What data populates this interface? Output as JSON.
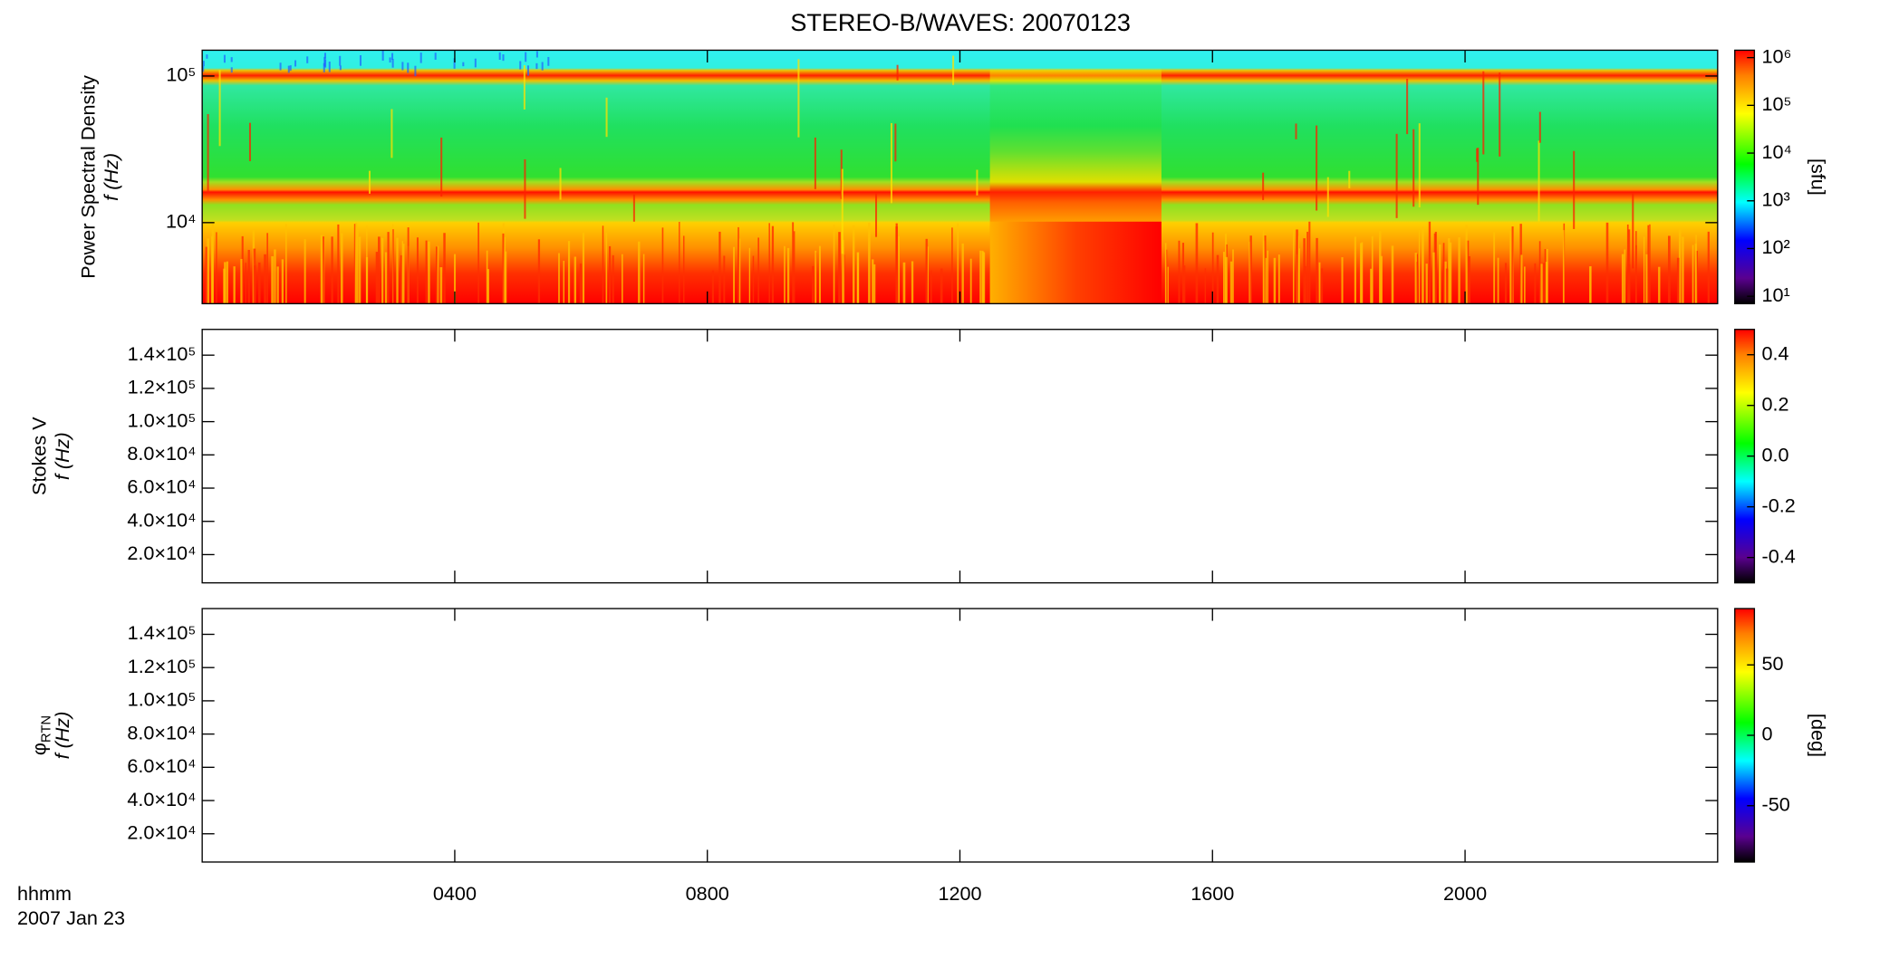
{
  "title": "STEREO-B/WAVES: 20070123",
  "x_axis": {
    "xlim": [
      0,
      24
    ],
    "xticks": [
      {
        "value": 4,
        "label": "0400"
      },
      {
        "value": 8,
        "label": "0800"
      },
      {
        "value": 12,
        "label": "1200"
      },
      {
        "value": 16,
        "label": "1600"
      },
      {
        "value": 20,
        "label": "2000"
      }
    ],
    "label": "hhmm",
    "date": "2007 Jan 23"
  },
  "chart_data": [
    {
      "type": "spectrogram",
      "ylabel": "Power Spectral Density",
      "ylabel2": "f (Hz)",
      "log_y": true,
      "ylim": [
        2800,
        150000
      ],
      "yticks": [
        {
          "value": 10000,
          "label": "10⁴"
        },
        {
          "value": 100000,
          "label": "10⁵"
        }
      ],
      "colormap": "rainbow",
      "colorbar": {
        "log": true,
        "lim": [
          7,
          1430000
        ],
        "label": "[sfu]",
        "ticks": [
          {
            "value": 10,
            "label": "10¹"
          },
          {
            "value": 100,
            "label": "10²"
          },
          {
            "value": 1000,
            "label": "10³"
          },
          {
            "value": 10000,
            "label": "10⁴"
          },
          {
            "value": 100000,
            "label": "10⁵"
          },
          {
            "value": 1000000,
            "label": "10⁶"
          }
        ]
      }
    },
    {
      "type": "empty",
      "ylabel": "Stokes V",
      "ylabel2": "f (Hz)",
      "log_y": false,
      "ylim": [
        3000,
        155500
      ],
      "yticks": [
        {
          "value": 20000,
          "label": "2.0×10⁴"
        },
        {
          "value": 40000,
          "label": "4.0×10⁴"
        },
        {
          "value": 60000,
          "label": "6.0×10⁴"
        },
        {
          "value": 80000,
          "label": "8.0×10⁴"
        },
        {
          "value": 100000,
          "label": "1.0×10⁵"
        },
        {
          "value": 120000,
          "label": "1.2×10⁵"
        },
        {
          "value": 140000,
          "label": "1.4×10⁵"
        }
      ],
      "colormap": "rainbow",
      "colorbar": {
        "log": false,
        "lim": [
          -0.5,
          0.5
        ],
        "ticks": [
          -0.4,
          -0.2,
          {
            "value": 0,
            "label": "0.0"
          },
          0.2,
          0.4
        ]
      }
    },
    {
      "type": "empty",
      "ylabel": "φ",
      "ylabel_sub": "RTN",
      "ylabel2": "f (Hz)",
      "log_y": false,
      "ylim": [
        3000,
        155500
      ],
      "yticks": [
        {
          "value": 20000,
          "label": "2.0×10⁴"
        },
        {
          "value": 40000,
          "label": "4.0×10⁴"
        },
        {
          "value": 60000,
          "label": "6.0×10⁴"
        },
        {
          "value": 80000,
          "label": "8.0×10⁴"
        },
        {
          "value": 100000,
          "label": "1.0×10⁵"
        },
        {
          "value": 120000,
          "label": "1.2×10⁵"
        },
        {
          "value": 140000,
          "label": "1.4×10⁵"
        }
      ],
      "colormap": "rainbow",
      "colorbar": {
        "log": false,
        "lim": [
          -90,
          90
        ],
        "label": "[deg]",
        "ticks": [
          -50,
          0,
          50
        ]
      }
    }
  ]
}
